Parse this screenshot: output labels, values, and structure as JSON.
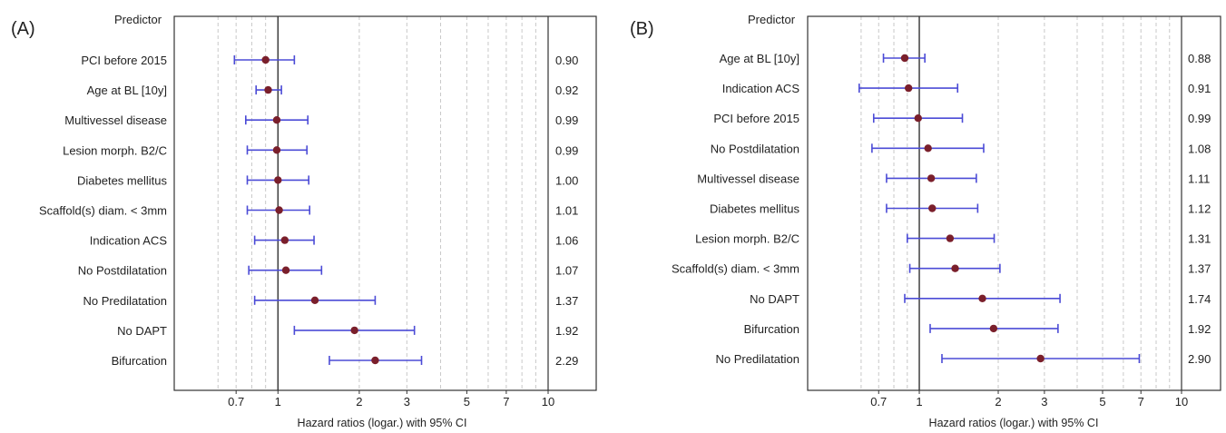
{
  "chart_data": [
    {
      "type": "forest",
      "panel_label": "(A)",
      "header": "Predictor",
      "xlabel": "Hazard ratios (logar.) with 95% CI",
      "xscale": "log",
      "xlim": [
        0.55,
        10
      ],
      "xticks": [
        0.7,
        1,
        2,
        3,
        5,
        7,
        10
      ],
      "xtick_labels": [
        "0.7",
        "1",
        "2",
        "3",
        "5",
        "7",
        "10"
      ],
      "minor_grid": [
        0.6,
        0.7,
        0.8,
        0.9,
        2,
        3,
        4,
        5,
        6,
        7,
        8,
        9
      ],
      "reference_line": 1,
      "rows": [
        {
          "label": "PCI before 2015",
          "hr": 0.9,
          "lo": 0.69,
          "hi": 1.15,
          "hr_label": "0.90"
        },
        {
          "label": "Age at BL [10y]",
          "hr": 0.92,
          "lo": 0.83,
          "hi": 1.03,
          "hr_label": "0.92"
        },
        {
          "label": "Multivessel disease",
          "hr": 0.99,
          "lo": 0.76,
          "hi": 1.29,
          "hr_label": "0.99"
        },
        {
          "label": "Lesion morph. B2/C",
          "hr": 0.99,
          "lo": 0.77,
          "hi": 1.28,
          "hr_label": "0.99"
        },
        {
          "label": "Diabetes mellitus",
          "hr": 1.0,
          "lo": 0.77,
          "hi": 1.3,
          "hr_label": "1.00"
        },
        {
          "label": "Scaffold(s) diam. < 3mm",
          "hr": 1.01,
          "lo": 0.77,
          "hi": 1.31,
          "hr_label": "1.01"
        },
        {
          "label": "Indication ACS",
          "hr": 1.06,
          "lo": 0.82,
          "hi": 1.36,
          "hr_label": "1.06"
        },
        {
          "label": "No Postdilatation",
          "hr": 1.07,
          "lo": 0.78,
          "hi": 1.45,
          "hr_label": "1.07"
        },
        {
          "label": "No Predilatation",
          "hr": 1.37,
          "lo": 0.82,
          "hi": 2.29,
          "hr_label": "1.37"
        },
        {
          "label": "No DAPT",
          "hr": 1.92,
          "lo": 1.15,
          "hi": 3.2,
          "hr_label": "1.92"
        },
        {
          "label": "Bifurcation",
          "hr": 2.29,
          "lo": 1.55,
          "hi": 3.4,
          "hr_label": "2.29"
        }
      ]
    },
    {
      "type": "forest",
      "panel_label": "(B)",
      "header": "Predictor",
      "xlabel": "Hazard ratios (logar.) with 95% CI",
      "xscale": "log",
      "xlim": [
        0.55,
        10
      ],
      "xticks": [
        0.7,
        1,
        2,
        3,
        5,
        7,
        10
      ],
      "xtick_labels": [
        "0.7",
        "1",
        "2",
        "3",
        "5",
        "7",
        "10"
      ],
      "minor_grid": [
        0.6,
        0.7,
        0.8,
        0.9,
        2,
        3,
        4,
        5,
        6,
        7,
        8,
        9
      ],
      "reference_line": 1,
      "rows": [
        {
          "label": "Age at BL [10y]",
          "hr": 0.88,
          "lo": 0.73,
          "hi": 1.05,
          "hr_label": "0.88"
        },
        {
          "label": "Indication ACS",
          "hr": 0.91,
          "lo": 0.59,
          "hi": 1.4,
          "hr_label": "0.91"
        },
        {
          "label": "PCI before 2015",
          "hr": 0.99,
          "lo": 0.67,
          "hi": 1.46,
          "hr_label": "0.99"
        },
        {
          "label": "No Postdilatation",
          "hr": 1.08,
          "lo": 0.66,
          "hi": 1.76,
          "hr_label": "1.08"
        },
        {
          "label": "Multivessel disease",
          "hr": 1.11,
          "lo": 0.75,
          "hi": 1.65,
          "hr_label": "1.11"
        },
        {
          "label": "Diabetes mellitus",
          "hr": 1.12,
          "lo": 0.75,
          "hi": 1.67,
          "hr_label": "1.12"
        },
        {
          "label": "Lesion morph. B2/C",
          "hr": 1.31,
          "lo": 0.9,
          "hi": 1.93,
          "hr_label": "1.31"
        },
        {
          "label": "Scaffold(s) diam. < 3mm",
          "hr": 1.37,
          "lo": 0.92,
          "hi": 2.03,
          "hr_label": "1.37"
        },
        {
          "label": "No DAPT",
          "hr": 1.74,
          "lo": 0.88,
          "hi": 3.44,
          "hr_label": "1.74"
        },
        {
          "label": "Bifurcation",
          "hr": 1.92,
          "lo": 1.1,
          "hi": 3.38,
          "hr_label": "1.92"
        },
        {
          "label": "No Predilatation",
          "hr": 2.9,
          "lo": 1.22,
          "hi": 6.9,
          "hr_label": "2.90"
        }
      ]
    }
  ],
  "colors": {
    "ci_line": "#4b4bd6",
    "point": "#7a1f2b",
    "frame": "#333333",
    "ref_line": "#333333",
    "grid": "#c8c8c8",
    "text": "#222222"
  }
}
